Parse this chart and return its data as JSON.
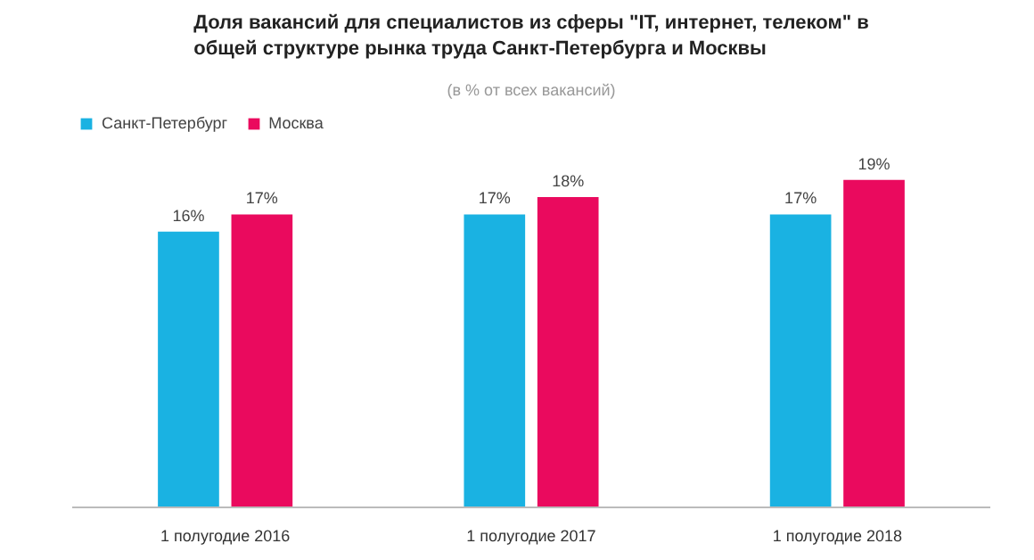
{
  "chart_data": {
    "type": "bar",
    "title": "Доля вакансий для специалистов из сферы \"IT, интернет, телеком\" в общей структуре рынка труда Санкт-Петербурга и Москвы",
    "subtitle": "(в % от всех вакансий)",
    "categories": [
      "1 полугодие 2016",
      "1 полугодие 2017",
      "1 полугодие 2018"
    ],
    "series": [
      {
        "name": "Санкт-Петербург",
        "color": "#1ab2e2",
        "values": [
          16,
          17,
          17
        ],
        "value_labels": [
          "16%",
          "17%",
          "17%"
        ]
      },
      {
        "name": "Москва",
        "color": "#ea0a5e",
        "values": [
          17,
          18,
          19
        ],
        "value_labels": [
          "17%",
          "18%",
          "19%"
        ]
      }
    ],
    "tick_labels": "x",
    "legend": "top left",
    "grid": false
  }
}
